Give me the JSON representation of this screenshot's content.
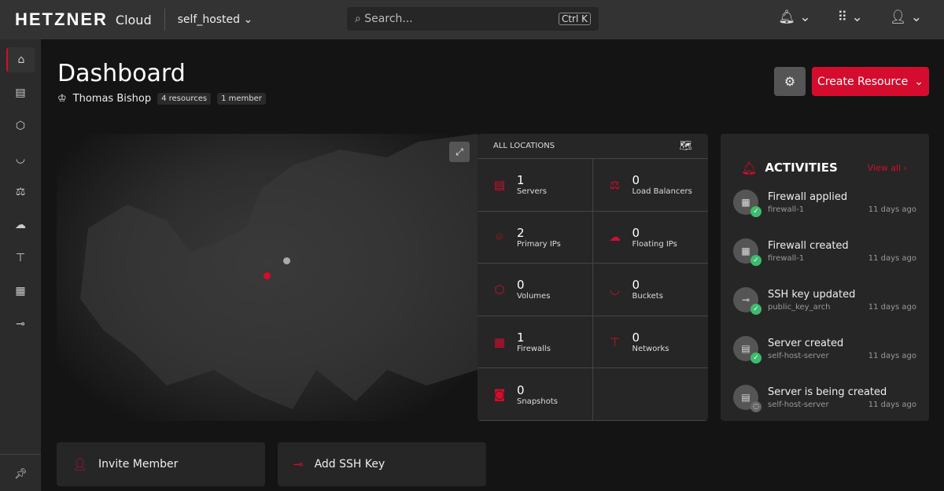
{
  "header": {
    "logo": "HETZNER",
    "product": "Cloud",
    "project": "self_hosted",
    "search_placeholder": "Search...",
    "search_shortcut": "Ctrl K"
  },
  "sidebar": {
    "items": [
      "home-icon",
      "servers-icon",
      "volumes-icon",
      "buckets-icon",
      "load-balancers-icon",
      "floating-ips-icon",
      "networks-icon",
      "firewalls-icon",
      "ssh-keys-icon"
    ]
  },
  "page": {
    "title": "Dashboard",
    "owner": "Thomas Bishop",
    "resources_badge": "4 resources",
    "members_badge": "1 member",
    "create_label": "Create Resource"
  },
  "locations": {
    "title": "ALL LOCATIONS",
    "items": [
      {
        "count": "1",
        "label": "Servers",
        "icon": "▤"
      },
      {
        "count": "0",
        "label": "Load Balancers",
        "icon": "⚖"
      },
      {
        "count": "2",
        "label": "Primary IPs",
        "icon": "⌾"
      },
      {
        "count": "0",
        "label": "Floating IPs",
        "icon": "☁"
      },
      {
        "count": "0",
        "label": "Volumes",
        "icon": "⬡"
      },
      {
        "count": "0",
        "label": "Buckets",
        "icon": "◡"
      },
      {
        "count": "1",
        "label": "Firewalls",
        "icon": "▦"
      },
      {
        "count": "0",
        "label": "Networks",
        "icon": "⊤"
      },
      {
        "count": "0",
        "label": "Snapshots",
        "icon": "◙"
      }
    ]
  },
  "activities": {
    "title": "ACTIVITIES",
    "view_all": "View all",
    "items": [
      {
        "title": "Firewall applied",
        "subject": "firewall-1",
        "time": "11 days ago",
        "icon": "▦",
        "status": "done"
      },
      {
        "title": "Firewall created",
        "subject": "firewall-1",
        "time": "11 days ago",
        "icon": "▦",
        "status": "done"
      },
      {
        "title": "SSH key updated",
        "subject": "public_key_arch",
        "time": "11 days ago",
        "icon": "⊸",
        "status": "done"
      },
      {
        "title": "Server created",
        "subject": "self-host-server",
        "time": "11 days ago",
        "icon": "▤",
        "status": "done"
      },
      {
        "title": "Server is being created",
        "subject": "self-host-server",
        "time": "11 days ago",
        "icon": "▤",
        "status": "pending"
      }
    ]
  },
  "quick_actions": {
    "invite": "Invite Member",
    "ssh": "Add SSH Key"
  },
  "colors": {
    "accent": "#d50c2d",
    "success": "#3dbb6e"
  }
}
